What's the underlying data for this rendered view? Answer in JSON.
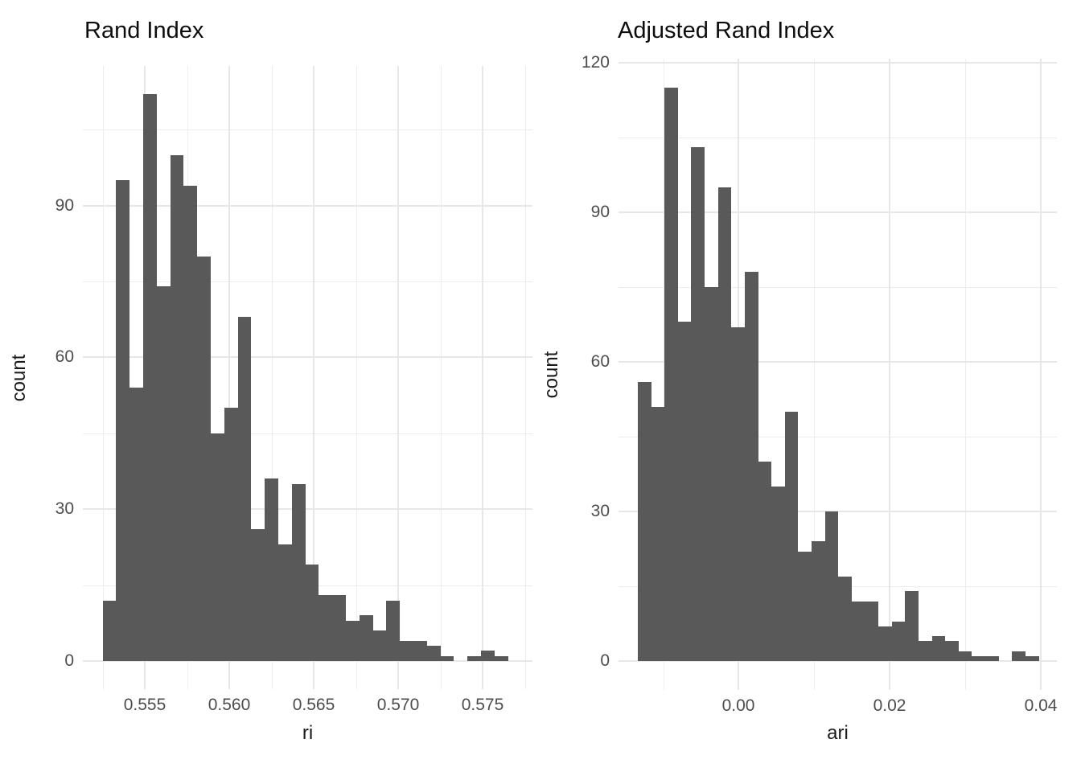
{
  "figure": {
    "background": "#ffffff",
    "grid_major_color": "#e7e7e7",
    "grid_minor_color": "#ededed",
    "tick_text_color": "#4d4d4d",
    "text_color": "#0d0d0d"
  },
  "chart_data": [
    {
      "type": "histogram",
      "title": "Rand Index",
      "xlabel": "ri",
      "ylabel": "count",
      "bar_color": "#595959",
      "legend": "none",
      "grid": "major+minor",
      "x_domain": [
        0.55133,
        0.57795
      ],
      "y_domain": [
        -5.56,
        117.6
      ],
      "x_ticks": [
        {
          "value": 0.555,
          "label": "0.555"
        },
        {
          "value": 0.56,
          "label": "0.560"
        },
        {
          "value": 0.565,
          "label": "0.565"
        },
        {
          "value": 0.57,
          "label": "0.570"
        },
        {
          "value": 0.575,
          "label": "0.575"
        }
      ],
      "x_minor_ticks": [
        0.5525,
        0.5575,
        0.5625,
        0.5675,
        0.5725,
        0.5775
      ],
      "y_ticks": [
        {
          "value": 0,
          "label": "0"
        },
        {
          "value": 30,
          "label": "30"
        },
        {
          "value": 60,
          "label": "60"
        },
        {
          "value": 90,
          "label": "90"
        }
      ],
      "y_minor_ticks": [
        15,
        45,
        75,
        105
      ],
      "bins": {
        "start": 0.5525,
        "width": 0.0008,
        "counts": [
          12,
          95,
          54,
          112,
          74,
          100,
          94,
          80,
          45,
          50,
          68,
          26,
          36,
          23,
          35,
          19,
          13,
          13,
          8,
          9,
          6,
          12,
          4,
          4,
          3,
          1,
          0,
          1,
          2,
          1
        ]
      }
    },
    {
      "type": "histogram",
      "title": "Adjusted Rand Index",
      "xlabel": "ari",
      "ylabel": "count",
      "bar_color": "#595959",
      "legend": "none",
      "grid": "major+minor",
      "x_domain": [
        -0.01592,
        0.04212
      ],
      "y_domain": [
        -5.75,
        120.75
      ],
      "x_ticks": [
        {
          "value": 0.0,
          "label": "0.00"
        },
        {
          "value": 0.02,
          "label": "0.02"
        },
        {
          "value": 0.04,
          "label": "0.04"
        }
      ],
      "x_minor_ticks": [
        -0.01,
        0.01,
        0.03
      ],
      "y_ticks": [
        {
          "value": 0,
          "label": "0"
        },
        {
          "value": 30,
          "label": "30"
        },
        {
          "value": 60,
          "label": "60"
        },
        {
          "value": 90,
          "label": "90"
        },
        {
          "value": 120,
          "label": "120"
        }
      ],
      "y_minor_ticks": [
        15,
        45,
        75,
        105
      ],
      "bins": {
        "start": -0.01337,
        "width": 0.00177,
        "counts": [
          56,
          51,
          115,
          68,
          103,
          75,
          95,
          67,
          78,
          40,
          35,
          50,
          22,
          24,
          30,
          17,
          12,
          12,
          7,
          8,
          14,
          4,
          5,
          4,
          2,
          1,
          1,
          0,
          2,
          1
        ]
      }
    }
  ]
}
